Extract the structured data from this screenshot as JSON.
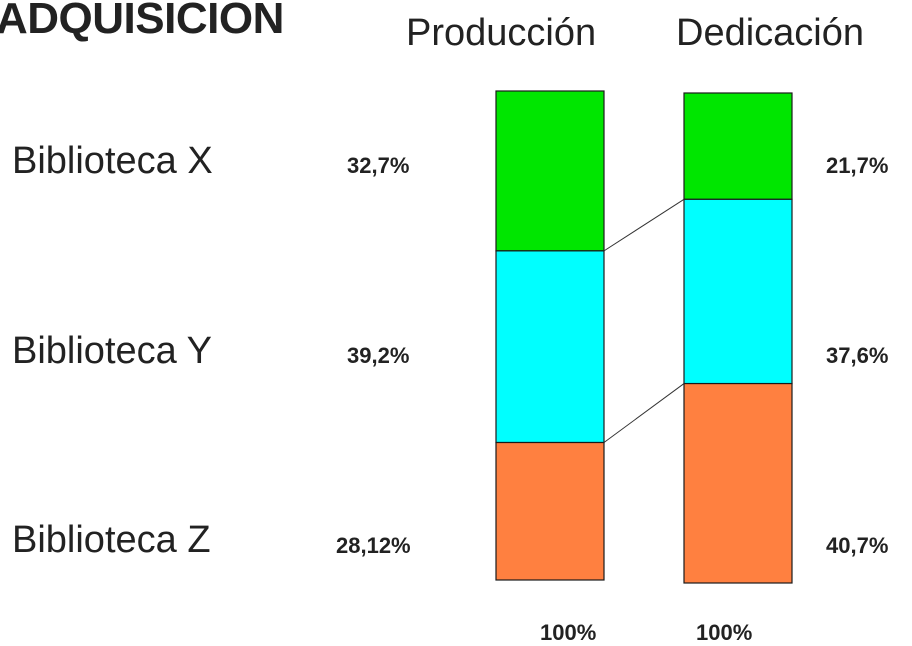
{
  "title": "ADQUISICION",
  "chart_data": {
    "type": "bar",
    "stacked": true,
    "normalized": true,
    "categories": [
      "Producción",
      "Dedicación"
    ],
    "series": [
      {
        "name": "Biblioteca X",
        "color": "#00e600",
        "values": [
          32.7,
          21.7
        ],
        "labels": [
          "32,7%",
          "21,7%"
        ]
      },
      {
        "name": "Biblioteca Y",
        "color": "#00ffff",
        "values": [
          39.2,
          37.6
        ],
        "labels": [
          "39,2%",
          "37,6%"
        ]
      },
      {
        "name": "Biblioteca Z",
        "color": "#ff8040",
        "values": [
          28.12,
          40.7
        ],
        "labels": [
          "28,12%",
          "40,7%"
        ]
      }
    ],
    "totals": [
      "100%",
      "100%"
    ],
    "connector_lines": true
  }
}
